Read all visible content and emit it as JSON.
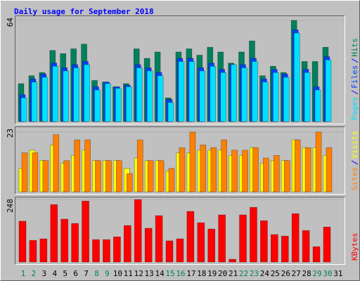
{
  "chart_data": [
    {
      "type": "bar",
      "title": "Daily usage for September 2018",
      "ylim": [
        0,
        64
      ],
      "yticks": [
        64
      ],
      "series": [
        {
          "name": "Hits",
          "color": "#00805c",
          "values": [
            24,
            29,
            31,
            45,
            43,
            46,
            49,
            26,
            25,
            22,
            24,
            46,
            40,
            44,
            15,
            44,
            46,
            42,
            47,
            44,
            37,
            44,
            51,
            29,
            35,
            31,
            64,
            38,
            38,
            47,
            0
          ]
        },
        {
          "name": "Files",
          "color": "#0040ff",
          "values": [
            17,
            27,
            30,
            37,
            34,
            36,
            38,
            22,
            25,
            22,
            23,
            36,
            34,
            31,
            14,
            40,
            40,
            34,
            37,
            33,
            36,
            36,
            40,
            27,
            33,
            30,
            58,
            33,
            22,
            41,
            0
          ]
        },
        {
          "name": "Pages",
          "color": "#00e0ff",
          "values": [
            15,
            25,
            28,
            35,
            32,
            34,
            36,
            20,
            24,
            21,
            22,
            34,
            32,
            29,
            12,
            38,
            38,
            32,
            35,
            31,
            36,
            34,
            38,
            25,
            31,
            28,
            56,
            31,
            20,
            39,
            0
          ]
        }
      ]
    },
    {
      "type": "bar",
      "ylim": [
        0,
        23
      ],
      "yticks": [
        23
      ],
      "series": [
        {
          "name": "Visits",
          "color": "#ffff00",
          "values": [
            9,
            16,
            12,
            18,
            11,
            14,
            16,
            12,
            12,
            12,
            9,
            13,
            12,
            12,
            8,
            15,
            15,
            16,
            16,
            16,
            14,
            14,
            17,
            11,
            12,
            12,
            20,
            17,
            17,
            14,
            0
          ]
        },
        {
          "name": "Sites",
          "color": "#ff8000",
          "values": [
            15,
            15,
            12,
            22,
            12,
            20,
            20,
            12,
            12,
            12,
            7,
            20,
            12,
            12,
            9,
            17,
            23,
            18,
            17,
            20,
            16,
            16,
            17,
            13,
            14,
            12,
            20,
            17,
            23,
            17,
            0
          ]
        }
      ]
    },
    {
      "type": "bar",
      "ylim": [
        0,
        248
      ],
      "yticks": [
        248
      ],
      "categories": [
        1,
        2,
        3,
        4,
        5,
        6,
        7,
        8,
        9,
        10,
        11,
        12,
        13,
        14,
        15,
        16,
        17,
        18,
        19,
        20,
        21,
        22,
        23,
        24,
        25,
        26,
        27,
        28,
        29,
        30,
        31
      ],
      "category_colors": [
        "#00805c",
        "#00805c",
        "#000000",
        "#000000",
        "#000000",
        "#000000",
        "#000000",
        "#00805c",
        "#00805c",
        "#000000",
        "#000000",
        "#000000",
        "#000000",
        "#000000",
        "#00805c",
        "#00805c",
        "#000000",
        "#000000",
        "#000000",
        "#000000",
        "#000000",
        "#00805c",
        "#00805c",
        "#000000",
        "#000000",
        "#000000",
        "#000000",
        "#000000",
        "#00805c",
        "#00805c",
        "#000000"
      ],
      "series": [
        {
          "name": "KBytes",
          "color": "#ff0000",
          "values": [
            162,
            86,
            92,
            228,
            170,
            153,
            242,
            89,
            89,
            100,
            145,
            248,
            134,
            184,
            84,
            92,
            201,
            156,
            131,
            187,
            11,
            187,
            217,
            164,
            109,
            103,
            192,
            125,
            61,
            139,
            0
          ]
        }
      ]
    }
  ]
}
